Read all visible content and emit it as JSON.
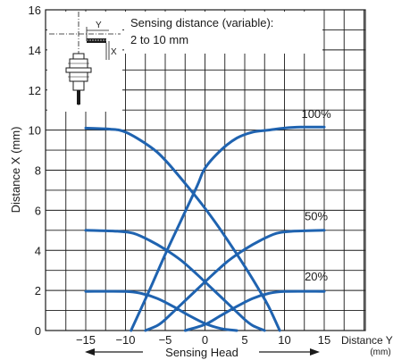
{
  "chart_data": {
    "type": "line",
    "ylabel": "Distance X (mm)",
    "xlabel": "Distance Y",
    "xlabel_unit": "(mm)",
    "x_ticks": [
      "−15",
      "−10",
      "−5",
      "0",
      "5",
      "10",
      "15"
    ],
    "y_ticks": [
      "0",
      "2",
      "4",
      "6",
      "8",
      "10",
      "12",
      "14",
      "16"
    ],
    "xlim": [
      -15,
      15
    ],
    "ylim": [
      0,
      16
    ],
    "grid": true,
    "annotation_lines": [
      "Sensing distance (variable):",
      "2 to 10 mm"
    ],
    "footer_label": "Sensing Head",
    "icon_labels": {
      "y": "Y",
      "x": "X"
    },
    "curve_color": "#1f63b0",
    "series": [
      {
        "name": "100%",
        "label_at": [
          14,
          10.6
        ],
        "left": {
          "x": [
            -15,
            -12,
            -10,
            -7,
            -5,
            -2,
            0,
            2,
            5,
            7,
            8,
            9.4
          ],
          "y": [
            10.1,
            10.05,
            9.9,
            9.2,
            8.5,
            7.1,
            6.1,
            5.0,
            3.2,
            1.9,
            1.2,
            0
          ]
        },
        "right": {
          "x": [
            -9.3,
            -7,
            -5,
            -3,
            -1,
            0,
            2,
            4,
            6,
            8,
            10,
            12,
            15
          ],
          "y": [
            0,
            2.0,
            3.8,
            5.5,
            7.2,
            8.1,
            9.0,
            9.6,
            9.9,
            10.0,
            10.1,
            10.15,
            10.15
          ]
        }
      },
      {
        "name": "50%",
        "label_at": [
          14,
          5.5
        ],
        "left": {
          "x": [
            -15,
            -11,
            -9,
            -7,
            -5,
            -3,
            -1,
            1,
            3,
            5,
            6,
            7.5
          ],
          "y": [
            5.0,
            4.95,
            4.85,
            4.5,
            4.05,
            3.5,
            2.8,
            2.05,
            1.3,
            0.55,
            0.25,
            0
          ]
        },
        "right": {
          "x": [
            -7.5,
            -6,
            -5,
            -3,
            -1,
            1,
            3,
            5,
            7,
            9,
            11,
            15
          ],
          "y": [
            0,
            0.25,
            0.55,
            1.3,
            2.05,
            2.8,
            3.5,
            4.05,
            4.5,
            4.85,
            4.95,
            5.0
          ]
        }
      },
      {
        "name": "20%",
        "label_at": [
          14,
          2.5
        ],
        "left": {
          "x": [
            -15,
            -10,
            -8,
            -6,
            -4,
            -2,
            0,
            2,
            4
          ],
          "y": [
            1.95,
            1.95,
            1.85,
            1.6,
            1.2,
            0.75,
            0.35,
            0.1,
            0
          ]
        },
        "right": {
          "x": [
            -2.5,
            0,
            2,
            4,
            6,
            8,
            10,
            15
          ],
          "y": [
            0,
            0.3,
            0.75,
            1.2,
            1.6,
            1.85,
            1.95,
            1.95
          ]
        }
      }
    ]
  }
}
